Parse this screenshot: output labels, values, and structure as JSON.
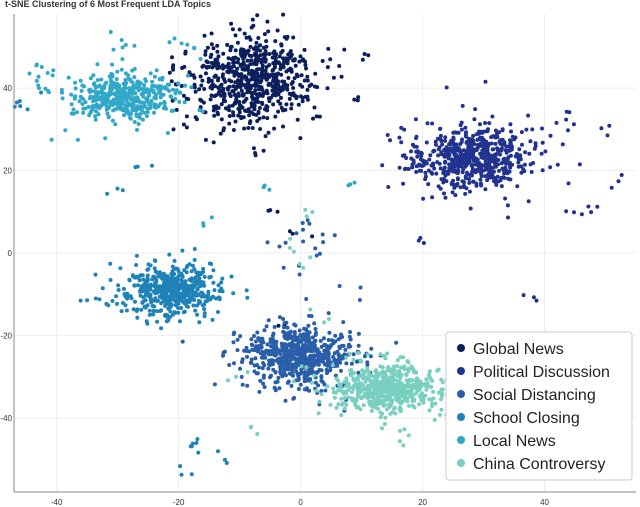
{
  "chart_data": {
    "type": "scatter",
    "title": "t-SNE Clustering of 6 Most Frequent LDA Topics",
    "xlabel": "",
    "ylabel": "",
    "xlim": [
      -47,
      55
    ],
    "ylim": [
      -58,
      58
    ],
    "x_ticks": [
      -40,
      -20,
      0,
      20,
      40
    ],
    "x_tick_labels": [
      "-40",
      "-20",
      "0",
      "20",
      "40"
    ],
    "y_ticks": [
      40,
      20,
      0,
      -20,
      -40
    ],
    "y_tick_labels": [
      "40",
      "20",
      "0",
      "-20",
      "-40"
    ],
    "grid": true,
    "legend_position": "bottom-right",
    "series": [
      {
        "name": "Global News",
        "color": "#0b1f5c",
        "clusters": [
          {
            "cx": -8,
            "cy": 42,
            "sx": 6.5,
            "sy": 7,
            "n": 650
          }
        ],
        "scatter": [
          [
            -5,
            10
          ],
          [
            2,
            5
          ],
          [
            -3,
            -18
          ],
          [
            5,
            45
          ],
          [
            -15,
            33
          ],
          [
            10,
            48
          ],
          [
            -20,
            30
          ],
          [
            8,
            38
          ]
        ]
      },
      {
        "name": "Political Discussion",
        "color": "#22338f",
        "clusters": [
          {
            "cx": 28,
            "cy": 23,
            "sx": 6.5,
            "sy": 5,
            "n": 600
          }
        ],
        "scatter": [
          [
            42,
            28
          ],
          [
            47,
            10
          ],
          [
            50,
            30
          ],
          [
            38,
            -10
          ],
          [
            19,
            3
          ],
          [
            52,
            18
          ],
          [
            43,
            9
          ],
          [
            44,
            32
          ],
          [
            45,
            31
          ]
        ]
      },
      {
        "name": "Social Distancing",
        "color": "#2a5ea8",
        "clusters": [
          {
            "cx": 0,
            "cy": -25,
            "sx": 6,
            "sy": 4.5,
            "n": 650
          }
        ],
        "scatter": [
          [
            2,
            0
          ],
          [
            0,
            8
          ],
          [
            1,
            5
          ],
          [
            4,
            4
          ],
          [
            -4,
            2
          ],
          [
            -2,
            -5
          ],
          [
            10,
            -10
          ]
        ]
      },
      {
        "name": "School Closing",
        "color": "#1f82b8",
        "clusters": [
          {
            "cx": -21,
            "cy": -9,
            "sx": 5,
            "sy": 4,
            "n": 520
          }
        ],
        "scatter": [
          [
            -30,
            14
          ],
          [
            -25,
            20
          ],
          [
            -13,
            -50
          ],
          [
            -18,
            -48
          ],
          [
            -19,
            -53
          ],
          [
            -16,
            -45
          ],
          [
            -34,
            -12
          ],
          [
            -45,
            37
          ],
          [
            -46,
            36
          ]
        ]
      },
      {
        "name": "Local News",
        "color": "#32a8c8",
        "clusters": [
          {
            "cx": -29,
            "cy": 38,
            "sx": 5.5,
            "sy": 3.5,
            "n": 420
          }
        ],
        "scatter": [
          [
            -40,
            39
          ],
          [
            -42,
            44
          ],
          [
            -41,
            43
          ],
          [
            -28,
            51
          ],
          [
            -30,
            52
          ],
          [
            -20,
            52
          ],
          [
            -18,
            50
          ],
          [
            -43,
            46
          ],
          [
            -38,
            28
          ],
          [
            -15,
            8
          ],
          [
            -5,
            17
          ],
          [
            8,
            16
          ]
        ]
      },
      {
        "name": "China Controversy",
        "color": "#79cfc0",
        "clusters": [
          {
            "cx": 14,
            "cy": -33,
            "sx": 5.5,
            "sy": 4,
            "n": 560
          }
        ],
        "scatter": [
          [
            2,
            10
          ],
          [
            -2,
            3
          ],
          [
            0,
            -2
          ],
          [
            4,
            -15
          ],
          [
            -11,
            -30
          ],
          [
            -8,
            -42
          ],
          [
            16,
            -45
          ]
        ]
      }
    ]
  }
}
